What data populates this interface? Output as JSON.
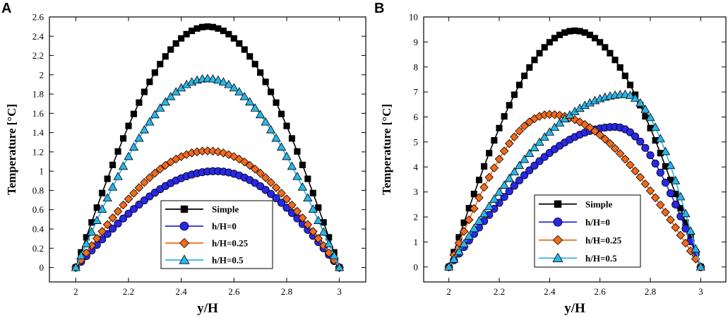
{
  "chart_data": [
    {
      "panel": "A",
      "type": "line",
      "xlabel": "y/H",
      "ylabel": "Temperature [°C]",
      "xlim": [
        1.9,
        3.1
      ],
      "ylim": [
        -0.15,
        2.6
      ],
      "xticks": [
        2,
        2.2,
        2.4,
        2.6,
        2.8,
        3
      ],
      "yticks": [
        0,
        0.2,
        0.4,
        0.6,
        0.8,
        1,
        1.2,
        1.4,
        1.6,
        1.8,
        2,
        2.2,
        2.4,
        2.6
      ],
      "legend": "bottom-center",
      "series": [
        {
          "name": "Simple",
          "color": "#000000",
          "marker": "square",
          "shape": "sine",
          "peak": 2.5,
          "peak_x": 2.5,
          "min": 0,
          "n": 51
        },
        {
          "name": "h/H=0",
          "color": "#2828e6",
          "marker": "circle",
          "shape": "skewed",
          "peak": 1.0,
          "peak_x": 2.53,
          "min": 0,
          "n": 51
        },
        {
          "name": "h/H=0.25",
          "color": "#f26a1b",
          "marker": "diamond",
          "shape": "sine",
          "peak": 1.21,
          "peak_x": 2.5,
          "min": 0,
          "n": 51
        },
        {
          "name": "h/H=0.5",
          "color": "#29b6e8",
          "marker": "triangle",
          "shape": "sine",
          "peak": 1.96,
          "peak_x": 2.5,
          "min": 0,
          "n": 51
        }
      ]
    },
    {
      "panel": "B",
      "type": "line",
      "xlabel": "y/H",
      "ylabel": "Temperature [°C]",
      "xlim": [
        1.9,
        3.1
      ],
      "ylim": [
        -0.6,
        10
      ],
      "xticks": [
        2,
        2.2,
        2.4,
        2.6,
        2.8,
        3
      ],
      "yticks": [
        0,
        1,
        2,
        3,
        4,
        5,
        6,
        7,
        8,
        9,
        10
      ],
      "legend": "bottom-center",
      "series": [
        {
          "name": "Simple",
          "color": "#000000",
          "marker": "square",
          "shape": "sine",
          "peak": 9.45,
          "peak_x": 2.5,
          "min": 0,
          "n": 51
        },
        {
          "name": "h/H=0",
          "color": "#2828e6",
          "marker": "circle",
          "shape": "skewed",
          "peak": 5.6,
          "peak_x": 2.66,
          "min": 0,
          "n": 51
        },
        {
          "name": "h/H=0.25",
          "color": "#f26a1b",
          "marker": "diamond",
          "shape": "skewed",
          "peak": 6.1,
          "peak_x": 2.4,
          "min": 0,
          "n": 51
        },
        {
          "name": "h/H=0.5",
          "color": "#29b6e8",
          "marker": "triangle",
          "shape": "skewed",
          "peak": 6.9,
          "peak_x": 2.7,
          "min": 0,
          "n": 51
        }
      ]
    }
  ]
}
